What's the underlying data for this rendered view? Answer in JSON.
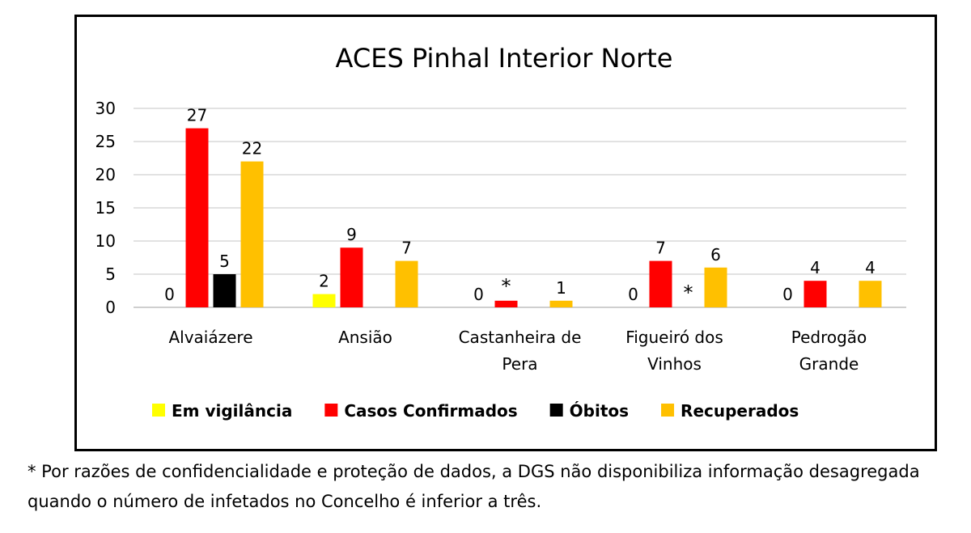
{
  "chart_data": {
    "type": "bar",
    "title": "ACES Pinhal Interior Norte",
    "categories": [
      "Alvaiázere",
      "Ansião",
      "Castanheira de Pera",
      "Figueiró dos Vinhos",
      "Pedrogão Grande"
    ],
    "category_lines": [
      [
        "Alvaiázere"
      ],
      [
        "Ansião"
      ],
      [
        "Castanheira de",
        "Pera"
      ],
      [
        "Figueiró dos",
        "Vinhos"
      ],
      [
        "Pedrogão",
        "Grande"
      ]
    ],
    "series": [
      {
        "name": "Em vigilância",
        "color": "#FFFF00",
        "values": [
          0,
          2,
          0,
          0,
          0
        ],
        "labels": [
          "0",
          "2",
          "0",
          "0",
          "0"
        ]
      },
      {
        "name": "Casos Confirmados",
        "color": "#FF0000",
        "values": [
          27,
          9,
          1,
          7,
          4
        ],
        "labels": [
          "27",
          "9",
          "*",
          "7",
          "4"
        ]
      },
      {
        "name": "Óbitos",
        "color": "#000000",
        "values": [
          5,
          0,
          0,
          0,
          0
        ],
        "labels": [
          "5",
          "",
          "",
          "*",
          ""
        ]
      },
      {
        "name": "Recuperados",
        "color": "#FFC000",
        "values": [
          22,
          7,
          1,
          6,
          4
        ],
        "labels": [
          "22",
          "7",
          "1",
          "6",
          "4"
        ]
      }
    ],
    "ylim": [
      0,
      30
    ],
    "yticks": [
      0,
      5,
      10,
      15,
      20,
      25,
      30
    ],
    "grid": true,
    "legend_position": "bottom"
  },
  "footnote": "* Por razões de confidencialidade e proteção de dados, a DGS não disponibiliza informação desagregada quando o número de infetados no Concelho é inferior a três."
}
